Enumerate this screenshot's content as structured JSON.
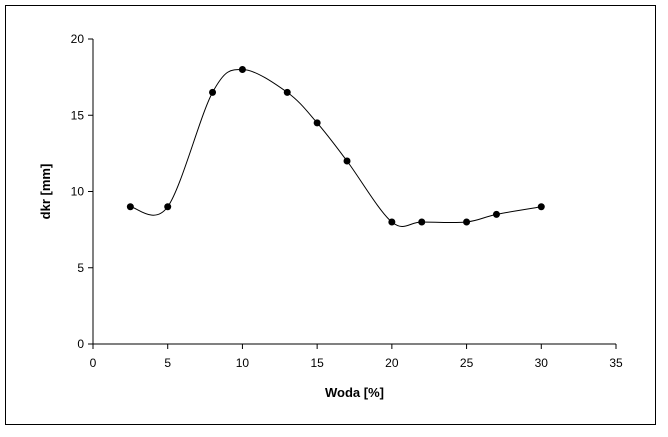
{
  "chart_data": {
    "type": "scatter",
    "title": "",
    "xlabel": "Woda [%]",
    "ylabel": "dkr [mm]",
    "xlim": [
      0,
      35
    ],
    "ylim": [
      0,
      20
    ],
    "xticks": [
      0,
      5,
      10,
      15,
      20,
      25,
      30,
      35
    ],
    "yticks": [
      0,
      5,
      10,
      15,
      20
    ],
    "xtick_labels": [
      "0",
      "5",
      "10",
      "15",
      "20",
      "25",
      "30",
      "35"
    ],
    "ytick_labels": [
      "0",
      "5",
      "10",
      "15",
      "20"
    ],
    "grid": false,
    "legend": false,
    "series": [
      {
        "x": [
          2.5,
          5,
          8,
          10,
          13,
          15,
          17,
          20,
          22,
          25,
          27,
          30
        ],
        "y": [
          9,
          9,
          16.5,
          18,
          16.5,
          14.5,
          12,
          8,
          8,
          8,
          8.5,
          9
        ],
        "line": "smooth",
        "marker": "circle",
        "color": "#000000"
      }
    ]
  }
}
